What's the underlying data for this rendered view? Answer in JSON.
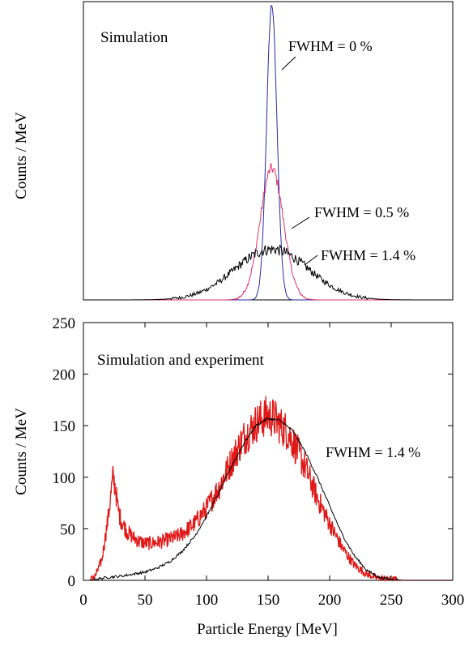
{
  "chart_data": [
    {
      "type": "line",
      "annotation": "Simulation",
      "ylabel": "Counts / MeV",
      "xlim": [
        0,
        300
      ],
      "ylim": [
        0,
        1
      ],
      "y_ticks_shown": false,
      "series": [
        {
          "name": "FWHM = 0 %",
          "color": "#2b2ba3",
          "center": 153,
          "sigma": 4.2,
          "peak": 0.99,
          "noise": 0.02
        },
        {
          "name": "FWHM = 0.5 %",
          "color": "#e0346c",
          "center": 153,
          "sigma": 9.5,
          "peak": 0.44,
          "noise": 0.03
        },
        {
          "name": "FWHM = 1.4 %",
          "color": "#000000",
          "center": 153,
          "sigma": 30,
          "peak": 0.17,
          "noise": 0.03
        }
      ]
    },
    {
      "type": "line",
      "annotation": "Simulation and experiment",
      "legend_text": "FWHM = 1.4 %",
      "xlabel": "Particle Energy [MeV]",
      "ylabel": "Counts / MeV",
      "xlim": [
        0,
        300
      ],
      "ylim": [
        0,
        250
      ],
      "x_ticks": [
        "0",
        "50",
        "100",
        "150",
        "200",
        "250",
        "300"
      ],
      "y_ticks": [
        "0",
        "50",
        "100",
        "150",
        "200",
        "250"
      ],
      "series": [
        {
          "color": "#e01818",
          "x": [
            5,
            10,
            15,
            20,
            22,
            24,
            26,
            28,
            30,
            35,
            40,
            45,
            50,
            55,
            60,
            65,
            70,
            75,
            80,
            90,
            100,
            110,
            120,
            130,
            140,
            145,
            150,
            155,
            160,
            165,
            170,
            180,
            190,
            200,
            210,
            220,
            230,
            240,
            250,
            260,
            270,
            280,
            290,
            300
          ],
          "values": [
            0,
            5,
            20,
            60,
            80,
            100,
            90,
            70,
            60,
            48,
            42,
            38,
            36,
            36,
            37,
            38,
            40,
            42,
            45,
            55,
            70,
            90,
            115,
            138,
            152,
            157,
            160,
            157,
            150,
            145,
            135,
            110,
            80,
            55,
            32,
            15,
            6,
            2,
            1,
            0,
            0,
            0,
            0,
            0
          ]
        },
        {
          "color": "#000000",
          "x": [
            5,
            10,
            20,
            30,
            40,
            50,
            60,
            70,
            80,
            90,
            100,
            110,
            120,
            130,
            140,
            150,
            160,
            170,
            180,
            190,
            200,
            210,
            220,
            230,
            240,
            250,
            260,
            300
          ],
          "values": [
            0,
            1,
            3,
            4,
            6,
            8,
            12,
            18,
            28,
            42,
            62,
            85,
            110,
            132,
            150,
            157,
            155,
            145,
            125,
            100,
            72,
            45,
            24,
            10,
            3,
            1,
            0,
            0
          ]
        }
      ]
    }
  ]
}
